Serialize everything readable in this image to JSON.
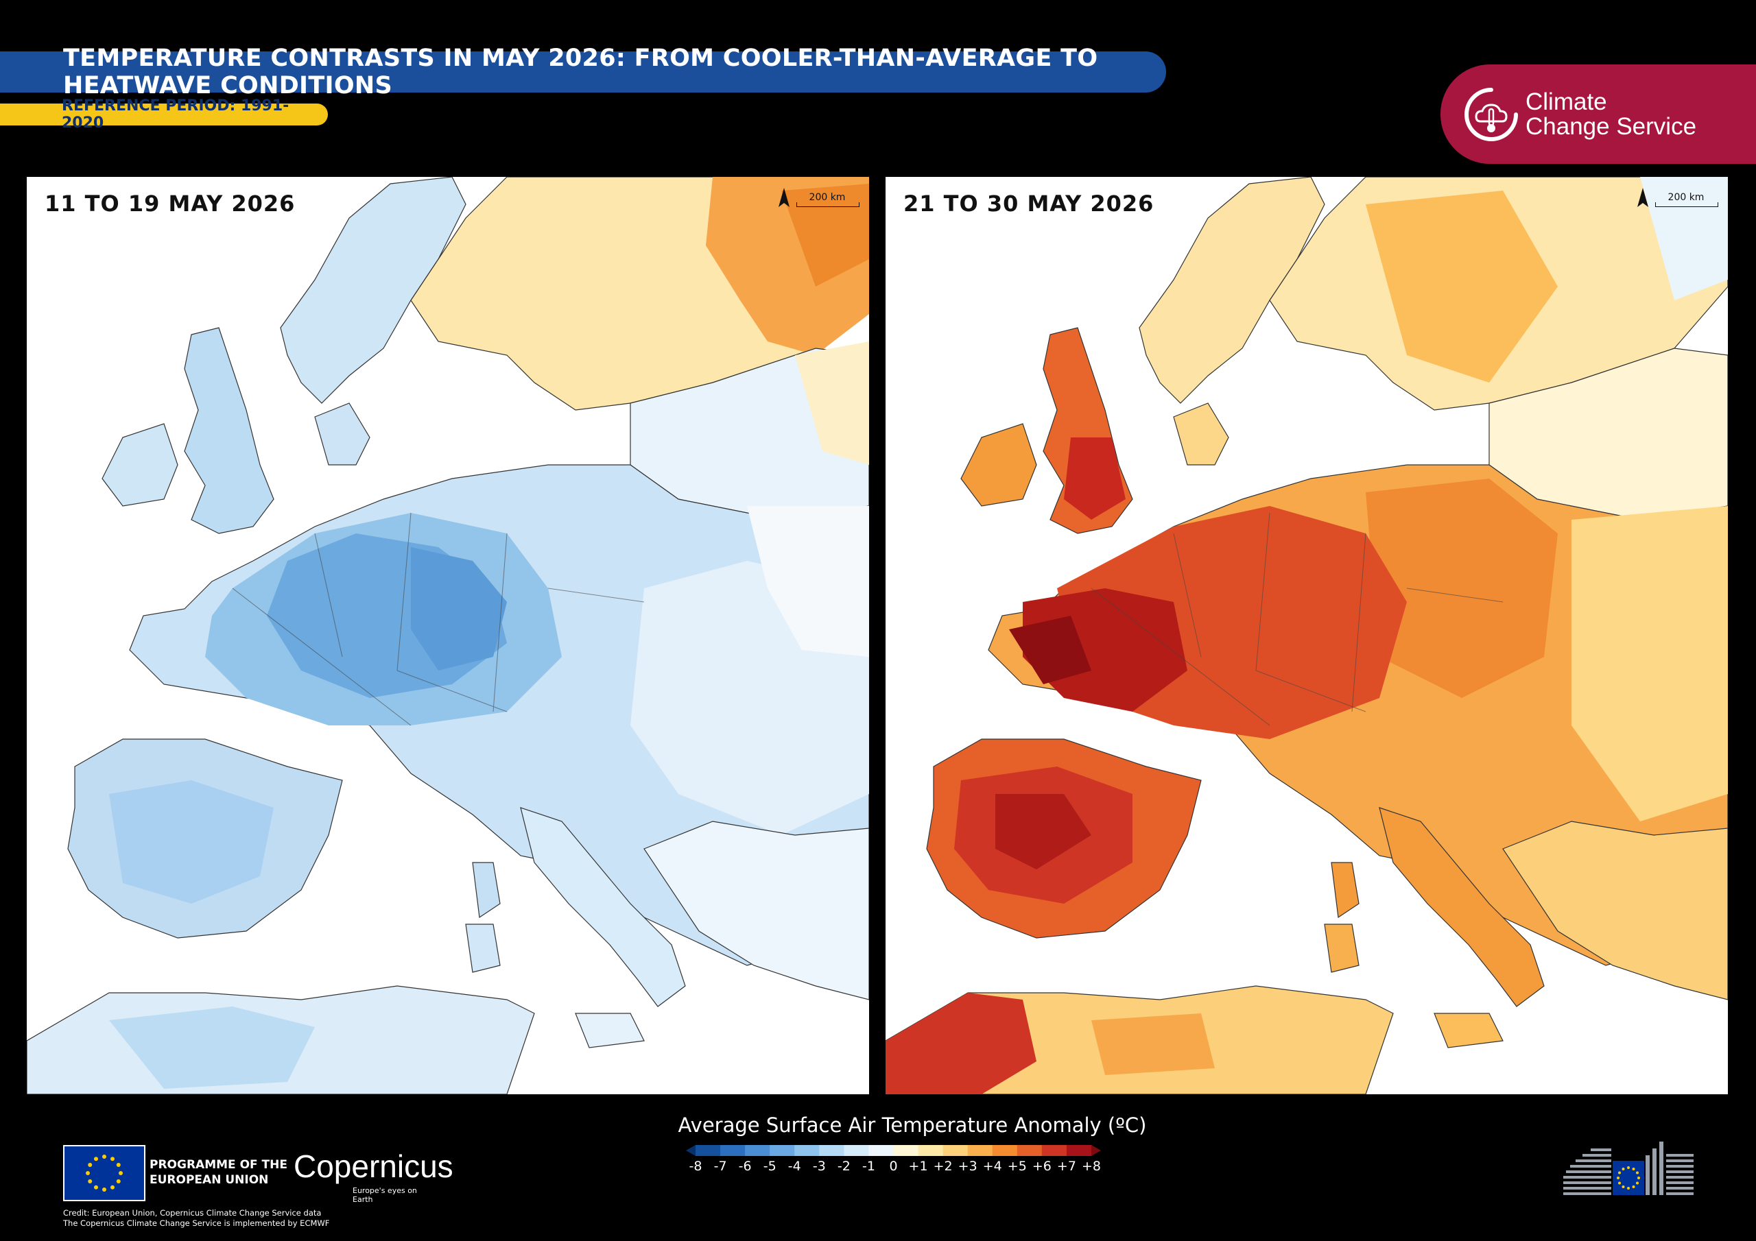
{
  "header": {
    "title": "TEMPERATURE CONTRASTS IN MAY 2026: FROM COOLER-THAN-AVERAGE TO HEATWAVE CONDITIONS",
    "subtitle": "REFERENCE PERIOD: 1991-2020"
  },
  "brand": {
    "c3s_line1": "Climate",
    "c3s_line2": "Change Service"
  },
  "panels": [
    {
      "label": "11 TO 19 MAY 2026",
      "scale_label": "200 km"
    },
    {
      "label": "21 TO 30 MAY 2026",
      "scale_label": "200 km"
    }
  ],
  "legend": {
    "title": "Average Surface Air Temperature Anomaly (ºC)",
    "ticks": [
      "-8",
      "-7",
      "-6",
      "-5",
      "-4",
      "-3",
      "-2",
      "-1",
      "0",
      "+1",
      "+2",
      "+3",
      "+4",
      "+5",
      "+6",
      "+7",
      "+8"
    ],
    "colors": [
      "#08306b",
      "#15509c",
      "#2c6fc0",
      "#4a8fd6",
      "#6aa9e3",
      "#8fc4ef",
      "#b4daf6",
      "#d6ecfb",
      "#eef7fd",
      "#fff7d6",
      "#fee9a8",
      "#fdd27a",
      "#fbb24e",
      "#f58c30",
      "#e6602a",
      "#cf3524",
      "#a8131a",
      "#7d0a10"
    ]
  },
  "footer": {
    "programme_line1": "PROGRAMME OF THE",
    "programme_line2": "EUROPEAN UNION",
    "copernicus_name": "Copernicus",
    "copernicus_tag": "Europe's eyes on Earth",
    "credit_line1": "Credit: European Union, Copernicus Climate Change Service data",
    "credit_line2": "The Copernicus Climate Change Service is implemented by ECMWF"
  },
  "icons": [
    "climate-change-service-logo-icon",
    "north-arrow-icon",
    "eu-flag-icon",
    "european-commission-logo-icon"
  ]
}
